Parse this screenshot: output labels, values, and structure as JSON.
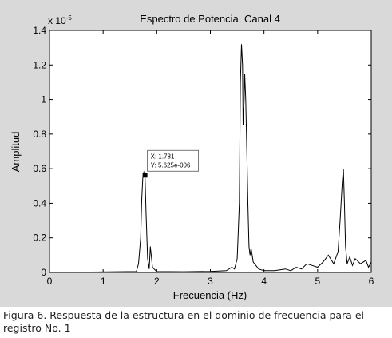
{
  "chart_data": {
    "type": "line",
    "title": "Espectro de Potencia. Canal 4",
    "xlabel": "Frecuencia (Hz)",
    "ylabel": "Amplitud",
    "y_multiplier": "x 10",
    "y_multiplier_exp": "-5",
    "xlim": [
      0,
      6
    ],
    "ylim": [
      0,
      1.4
    ],
    "x_ticks": [
      0,
      1,
      2,
      3,
      4,
      5,
      6
    ],
    "y_ticks": [
      "0",
      "0.2",
      "0.4",
      "0.6",
      "0.8",
      "1",
      "1.2",
      "1.4"
    ],
    "grid": false,
    "line_color": "#000000",
    "series": [
      {
        "x": [
          0.0,
          1.62,
          1.66,
          1.7,
          1.72,
          1.74,
          1.76,
          1.78,
          1.8,
          1.83,
          1.86,
          1.88,
          1.92,
          1.95,
          2.0,
          2.5,
          3.0,
          3.3,
          3.4,
          3.45,
          3.5,
          3.54,
          3.56,
          3.58,
          3.6,
          3.61,
          3.63,
          3.64,
          3.66,
          3.68,
          3.7,
          3.72,
          3.74,
          3.76,
          3.8,
          3.85,
          3.9,
          4.0,
          4.2,
          4.4,
          4.5,
          4.6,
          4.7,
          4.8,
          4.9,
          5.0,
          5.1,
          5.2,
          5.3,
          5.38,
          5.42,
          5.46,
          5.48,
          5.5,
          5.52,
          5.55,
          5.6,
          5.65,
          5.7,
          5.8,
          5.9,
          5.95,
          6.0
        ],
        "y": [
          0,
          0.005,
          0.05,
          0.2,
          0.42,
          0.55,
          0.58,
          0.5625,
          0.35,
          0.08,
          0.02,
          0.15,
          0.03,
          0.02,
          0.005,
          0.004,
          0.006,
          0.01,
          0.03,
          0.02,
          0.08,
          0.4,
          1.1,
          1.32,
          1.2,
          0.85,
          1.0,
          1.15,
          1.0,
          0.7,
          0.4,
          0.15,
          0.1,
          0.14,
          0.06,
          0.04,
          0.02,
          0.01,
          0.01,
          0.02,
          0.01,
          0.03,
          0.02,
          0.05,
          0.04,
          0.03,
          0.06,
          0.1,
          0.05,
          0.12,
          0.3,
          0.52,
          0.6,
          0.4,
          0.15,
          0.05,
          0.09,
          0.04,
          0.08,
          0.05,
          0.07,
          0.03,
          0.06
        ]
      }
    ],
    "annotation": {
      "x": 1.781,
      "y": 0.5625,
      "line1": "X: 1.781",
      "line2": "Y: 5.625e-006"
    }
  },
  "caption": "Figura 6. Respuesta de la estructura en el dominio de frecuencia para el registro No. 1"
}
